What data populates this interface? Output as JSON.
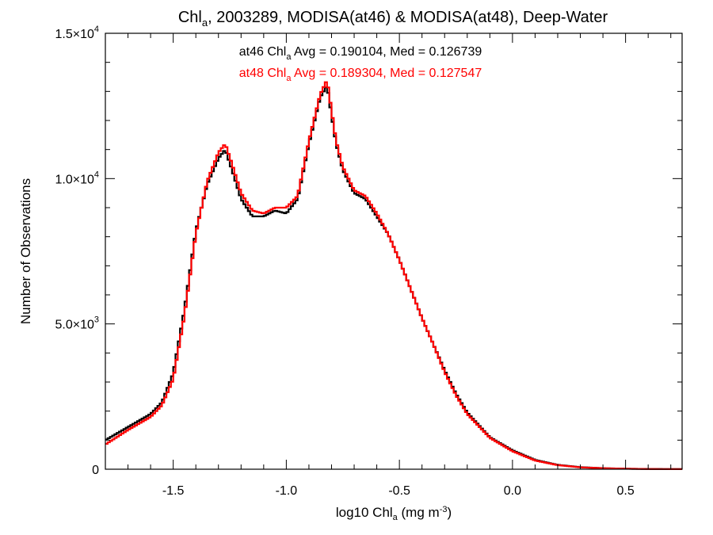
{
  "chart_data": {
    "type": "line",
    "step": true,
    "title": {
      "prefix": "Chl",
      "sub": "a",
      "rest": ", 2003289, MODISA(at46) & MODISA(at48), Deep-Water"
    },
    "xlabel": {
      "prefix": "log10 Chl",
      "sub": "a",
      "mid": " (mg m",
      "sup": "-3",
      "suffix": ")"
    },
    "ylabel": "Number of Observations",
    "xlim": [
      -1.8,
      0.75
    ],
    "ylim": [
      0,
      15000
    ],
    "x_ticks": [
      {
        "value": -1.5,
        "label": "-1.5"
      },
      {
        "value": -1.0,
        "label": "-1.0"
      },
      {
        "value": -0.5,
        "label": "-0.5"
      },
      {
        "value": 0.0,
        "label": "0.0"
      },
      {
        "value": 0.5,
        "label": "0.5"
      }
    ],
    "y_ticks": [
      {
        "value": 0,
        "mant": "0",
        "exp": ""
      },
      {
        "value": 5000,
        "mant": "5.0×10",
        "exp": "3"
      },
      {
        "value": 10000,
        "mant": "1.0×10",
        "exp": "4"
      },
      {
        "value": 15000,
        "mant": "1.5×10",
        "exp": "4"
      }
    ],
    "x_minor_step": 0.1,
    "y_minor_step": 1000,
    "annotations": [
      {
        "pre": "at46 Chl",
        "sub": "a",
        "post": " Avg = 0.190104, Med = 0.126739",
        "color": "#000000"
      },
      {
        "pre": "at48 Chl",
        "sub": "a",
        "post": " Avg = 0.189304, Med = 0.127547",
        "color": "#ff0000"
      }
    ],
    "x_knots": [
      -1.8,
      -1.7,
      -1.6,
      -1.55,
      -1.5,
      -1.45,
      -1.4,
      -1.35,
      -1.3,
      -1.27,
      -1.24,
      -1.2,
      -1.15,
      -1.1,
      -1.05,
      -1.0,
      -0.95,
      -0.9,
      -0.85,
      -0.82,
      -0.78,
      -0.75,
      -0.7,
      -0.65,
      -0.6,
      -0.55,
      -0.5,
      -0.45,
      -0.4,
      -0.35,
      -0.3,
      -0.25,
      -0.2,
      -0.1,
      0.0,
      0.1,
      0.2,
      0.3,
      0.4,
      0.5,
      0.6,
      0.75
    ],
    "series": [
      {
        "name": "at46",
        "color": "#000000",
        "y_knots": [
          1000,
          1450,
          1900,
          2300,
          3300,
          5500,
          8200,
          9800,
          10700,
          11000,
          10300,
          9300,
          8700,
          8700,
          8900,
          8800,
          9300,
          11200,
          12800,
          13200,
          11200,
          10300,
          9500,
          9300,
          8700,
          8100,
          7200,
          6200,
          5200,
          4300,
          3400,
          2600,
          1950,
          1100,
          650,
          320,
          150,
          70,
          35,
          18,
          8,
          3
        ]
      },
      {
        "name": "at48",
        "color": "#ff0000",
        "y_knots": [
          850,
          1350,
          1800,
          2200,
          3100,
          5300,
          8100,
          9900,
          10900,
          11200,
          10500,
          9500,
          8900,
          8800,
          9000,
          9000,
          9400,
          11300,
          12900,
          13400,
          11300,
          10400,
          9600,
          9400,
          8800,
          8100,
          7200,
          6200,
          5200,
          4300,
          3350,
          2550,
          1900,
          1080,
          620,
          300,
          140,
          65,
          32,
          16,
          7,
          3
        ]
      }
    ]
  }
}
